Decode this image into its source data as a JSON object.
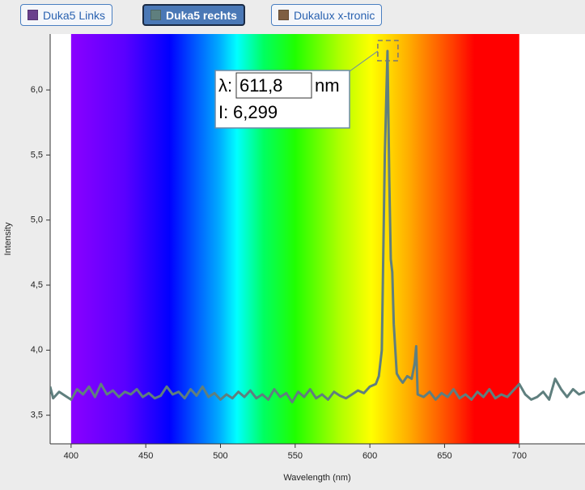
{
  "chart_data": {
    "type": "line",
    "legend_buttons": [
      {
        "label": "Duka5 Links",
        "color": "#6a3f8c"
      },
      {
        "label": "Duka5 rechts",
        "color": "#5f7f7e",
        "active": true
      },
      {
        "label": "Dukalux x-tronic",
        "color": "#7f5f42"
      }
    ],
    "xlabel": "Wavelength (nm)",
    "ylabel": "Intensity",
    "spectrum_range": [
      400,
      700
    ],
    "color": "#5f7f7e",
    "x": [
      386,
      388,
      392,
      396,
      400,
      404,
      408,
      412,
      416,
      420,
      424,
      428,
      432,
      436,
      440,
      444,
      448,
      452,
      456,
      460,
      464,
      468,
      472,
      476,
      480,
      484,
      488,
      492,
      496,
      500,
      504,
      508,
      512,
      516,
      520,
      524,
      528,
      532,
      536,
      540,
      544,
      548,
      552,
      556,
      560,
      564,
      568,
      572,
      576,
      580,
      584,
      588,
      592,
      596,
      600,
      604,
      606,
      608,
      610,
      611.8,
      613,
      614,
      615,
      616,
      618,
      620,
      622,
      625,
      628,
      630,
      631,
      632,
      636,
      640,
      644,
      648,
      652,
      656,
      660,
      664,
      668,
      672,
      676,
      680,
      684,
      688,
      692,
      696,
      700,
      704,
      708,
      712,
      716,
      720,
      724,
      728,
      732,
      736,
      740,
      744
    ],
    "values": [
      3.72,
      3.63,
      3.68,
      3.65,
      3.62,
      3.7,
      3.66,
      3.72,
      3.64,
      3.74,
      3.66,
      3.69,
      3.64,
      3.68,
      3.66,
      3.7,
      3.64,
      3.67,
      3.63,
      3.65,
      3.72,
      3.66,
      3.68,
      3.63,
      3.7,
      3.65,
      3.72,
      3.64,
      3.67,
      3.62,
      3.66,
      3.63,
      3.68,
      3.64,
      3.69,
      3.63,
      3.66,
      3.62,
      3.7,
      3.64,
      3.67,
      3.6,
      3.68,
      3.64,
      3.7,
      3.63,
      3.66,
      3.62,
      3.68,
      3.65,
      3.63,
      3.66,
      3.69,
      3.67,
      3.72,
      3.74,
      3.8,
      4.0,
      5.5,
      6.299,
      5.3,
      4.7,
      4.6,
      4.2,
      3.82,
      3.78,
      3.75,
      3.8,
      3.78,
      3.9,
      4.03,
      3.66,
      3.64,
      3.68,
      3.62,
      3.67,
      3.64,
      3.7,
      3.63,
      3.66,
      3.62,
      3.68,
      3.64,
      3.7,
      3.63,
      3.66,
      3.64,
      3.69,
      3.74,
      3.66,
      3.62,
      3.64,
      3.68,
      3.62,
      3.78,
      3.7,
      3.64,
      3.7,
      3.66,
      3.68
    ],
    "xlim": [
      386,
      744
    ],
    "ylim": [
      3.28,
      6.43
    ],
    "xticks": [
      400,
      450,
      500,
      550,
      600,
      650,
      700
    ],
    "yticks": [
      {
        "value": 3.5,
        "label": "3,5"
      },
      {
        "value": 4.0,
        "label": "4,0"
      },
      {
        "value": 4.5,
        "label": "4,5"
      },
      {
        "value": 5.0,
        "label": "5,0"
      },
      {
        "value": 5.5,
        "label": "5,5"
      },
      {
        "value": 6.0,
        "label": "6,0"
      }
    ],
    "tooltip": {
      "lambda_label": "λ:",
      "lambda_value": "611,8",
      "unit": "nm",
      "intensity_label": "I:",
      "intensity_value": "6,299",
      "x": 611.8,
      "y": 6.299
    }
  }
}
